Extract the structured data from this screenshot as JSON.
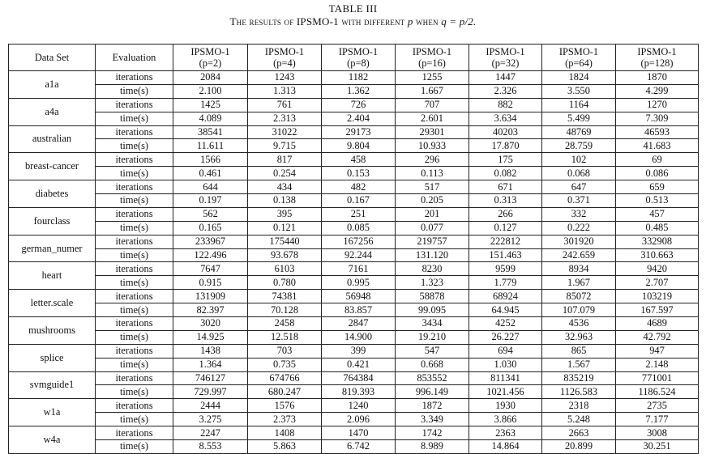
{
  "caption": {
    "table_number": "TABLE III",
    "title_prefix": "The results of IPSMO-1 with different ",
    "title_p": "p",
    "title_mid": " when ",
    "title_eq": "q = p/2."
  },
  "headers": {
    "dataset": "Data Set",
    "evaluation": "Evaluation",
    "methods": [
      {
        "name": "IPSMO-1",
        "param": "(p=2)"
      },
      {
        "name": "IPSMO-1",
        "param": "(p=4)"
      },
      {
        "name": "IPSMO-1",
        "param": "(p=8)"
      },
      {
        "name": "IPSMO-1",
        "param": "(p=16)"
      },
      {
        "name": "IPSMO-1",
        "param": "(p=32)"
      },
      {
        "name": "IPSMO-1",
        "param": "(p=64)"
      },
      {
        "name": "IPSMO-1",
        "param": "(p=128)"
      }
    ]
  },
  "row_labels": {
    "iterations": "iterations",
    "time": "time(s)"
  },
  "rows": [
    {
      "name": "a1a",
      "iterations": [
        "2084",
        "1243",
        "1182",
        "1255",
        "1447",
        "1824",
        "1870"
      ],
      "iter_bold": 2,
      "time": [
        "2.100",
        "1.313",
        "1.362",
        "1.667",
        "2.326",
        "3.550",
        "4.299"
      ],
      "time_bold": 1
    },
    {
      "name": "a4a",
      "iterations": [
        "1425",
        "761",
        "726",
        "707",
        "882",
        "1164",
        "1270"
      ],
      "iter_bold": 3,
      "time": [
        "4.089",
        "2.313",
        "2.404",
        "2.601",
        "3.634",
        "5.499",
        "7.309"
      ],
      "time_bold": 1
    },
    {
      "name": "australian",
      "iterations": [
        "38541",
        "31022",
        "29173",
        "29301",
        "40203",
        "48769",
        "46593"
      ],
      "iter_bold": 2,
      "time": [
        "11.611",
        "9.715",
        "9.804",
        "10.933",
        "17.870",
        "28.759",
        "41.683"
      ],
      "time_bold": 1
    },
    {
      "name": "breast-cancer",
      "iterations": [
        "1566",
        "817",
        "458",
        "296",
        "175",
        "102",
        "69"
      ],
      "iter_bold": 6,
      "time": [
        "0.461",
        "0.254",
        "0.153",
        "0.113",
        "0.082",
        "0.068",
        "0.086"
      ],
      "time_bold": 5
    },
    {
      "name": "diabetes",
      "iterations": [
        "644",
        "434",
        "482",
        "517",
        "671",
        "647",
        "659"
      ],
      "iter_bold": 1,
      "time": [
        "0.197",
        "0.138",
        "0.167",
        "0.205",
        "0.313",
        "0.371",
        "0.513"
      ],
      "time_bold": 1
    },
    {
      "name": "fourclass",
      "iterations": [
        "562",
        "395",
        "251",
        "201",
        "266",
        "332",
        "457"
      ],
      "iter_bold": 3,
      "time": [
        "0.165",
        "0.121",
        "0.085",
        "0.077",
        "0.127",
        "0.222",
        "0.485"
      ],
      "time_bold": 3
    },
    {
      "name": "german_numer",
      "iterations": [
        "233967",
        "175440",
        "167256",
        "219757",
        "222812",
        "301920",
        "332908"
      ],
      "iter_bold": 2,
      "time": [
        "122.496",
        "93.678",
        "92.244",
        "131.120",
        "151.463",
        "242.659",
        "310.663"
      ],
      "time_bold": 2
    },
    {
      "name": "heart",
      "iterations": [
        "7647",
        "6103",
        "7161",
        "8230",
        "9599",
        "8934",
        "9420"
      ],
      "iter_bold": 1,
      "time": [
        "0.915",
        "0.780",
        "0.995",
        "1.323",
        "1.779",
        "1.967",
        "2.707"
      ],
      "time_bold": 1
    },
    {
      "name": "letter.scale",
      "iterations": [
        "131909",
        "74381",
        "56948",
        "58878",
        "68924",
        "85072",
        "103219"
      ],
      "iter_bold": 2,
      "time": [
        "82.397",
        "70.128",
        "83.857",
        "99.095",
        "64.945",
        "107.079",
        "167.597"
      ],
      "time_bold": 4
    },
    {
      "name": "mushrooms",
      "iterations": [
        "3020",
        "2458",
        "2847",
        "3434",
        "4252",
        "4536",
        "4689"
      ],
      "iter_bold": 1,
      "time": [
        "14.925",
        "12.518",
        "14.900",
        "19.210",
        "26.227",
        "32.963",
        "42.792"
      ],
      "time_bold": 1
    },
    {
      "name": "splice",
      "iterations": [
        "1438",
        "703",
        "399",
        "547",
        "694",
        "865",
        "947"
      ],
      "iter_bold": 2,
      "time": [
        "1.364",
        "0.735",
        "0.421",
        "0.668",
        "1.030",
        "1.567",
        "2.148"
      ],
      "time_bold": 2
    },
    {
      "name": "svmguide1",
      "iterations": [
        "746127",
        "674766",
        "764384",
        "853552",
        "811341",
        "835219",
        "771001"
      ],
      "iter_bold": 1,
      "time": [
        "729.997",
        "680.247",
        "819.393",
        "996.149",
        "1021.456",
        "1126.583",
        "1186.524"
      ],
      "time_bold": 1
    },
    {
      "name": "w1a",
      "iterations": [
        "2444",
        "1576",
        "1240",
        "1872",
        "1930",
        "2318",
        "2735"
      ],
      "iter_bold": 2,
      "time": [
        "3.275",
        "2.373",
        "2.096",
        "3.349",
        "3.866",
        "5.248",
        "7.177"
      ],
      "time_bold": 2
    },
    {
      "name": "w4a",
      "iterations": [
        "2247",
        "1408",
        "1470",
        "1742",
        "2363",
        "2663",
        "3008"
      ],
      "iter_bold": 1,
      "time": [
        "8.553",
        "5.863",
        "6.742",
        "8.989",
        "14.864",
        "20.899",
        "30.251"
      ],
      "time_bold": 1
    }
  ]
}
